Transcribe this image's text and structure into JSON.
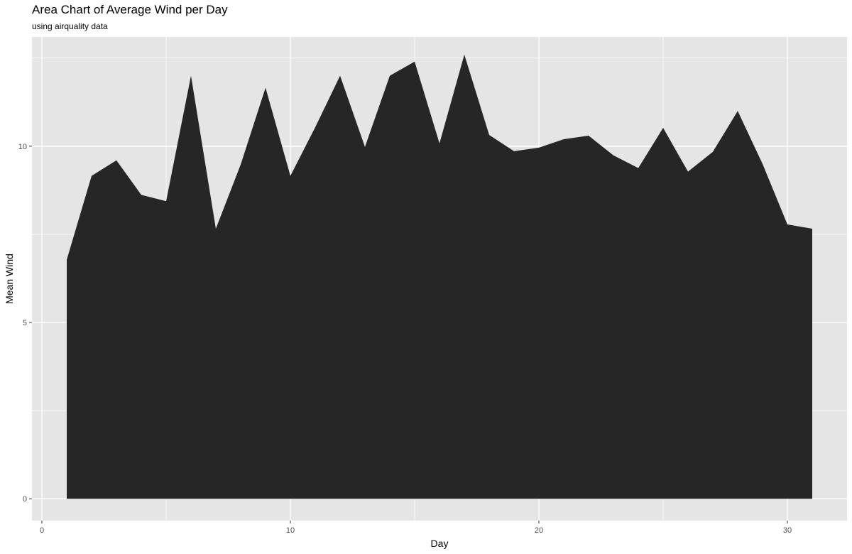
{
  "chart_data": {
    "type": "area",
    "title": "Area Chart of Average Wind per Day",
    "subtitle": "using airquality data",
    "xlabel": "Day",
    "ylabel": "Mean Wind",
    "xlim": [
      -0.4,
      32.4
    ],
    "ylim": [
      -0.62,
      13.1
    ],
    "x_ticks": [
      0,
      10,
      20,
      30
    ],
    "y_ticks": [
      0,
      5,
      10
    ],
    "grid": true,
    "legend": "none",
    "panel_color": "#e5e5e5",
    "grid_color": "#ffffff",
    "fill_color": "#262626",
    "series": [
      {
        "x": [
          1,
          2,
          3,
          4,
          5,
          6,
          7,
          8,
          9,
          10,
          11,
          12,
          13,
          14,
          15,
          16,
          17,
          18,
          19,
          20,
          21,
          22,
          23,
          24,
          25,
          26,
          27,
          28,
          29,
          30,
          31
        ],
        "values": [
          6.78,
          9.16,
          9.6,
          8.62,
          8.44,
          12.0,
          7.66,
          9.48,
          11.66,
          9.16,
          10.54,
          12.0,
          9.98,
          12.0,
          12.4,
          10.08,
          12.6,
          10.32,
          9.86,
          9.96,
          10.2,
          10.3,
          9.74,
          9.38,
          10.52,
          9.28,
          9.84,
          11.0,
          9.5,
          7.78,
          7.66
        ]
      }
    ]
  }
}
